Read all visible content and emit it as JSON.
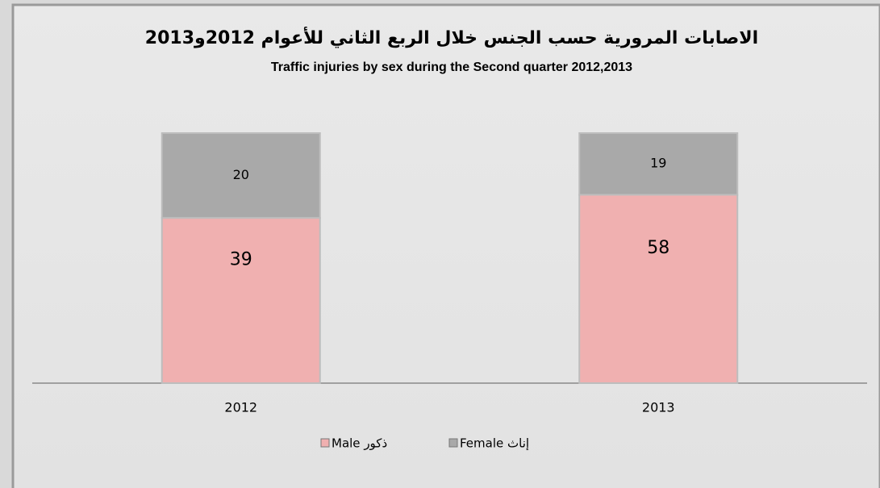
{
  "chart_data": {
    "type": "bar",
    "stacking": "percent",
    "title": "الاصابات المرورية حسب الجنس خلال الربع الثاني للأعوام 2012و2013",
    "subtitle": "Traffic injuries by sex during  the Second quarter 2012,2013",
    "categories": [
      "2012",
      "2013"
    ],
    "series": [
      {
        "name": "Male ذكور",
        "color": "#f0b0b0",
        "values": [
          39,
          58
        ]
      },
      {
        "name": "Female إناث",
        "color": "#a9a9a9",
        "values": [
          20,
          19
        ]
      }
    ]
  }
}
